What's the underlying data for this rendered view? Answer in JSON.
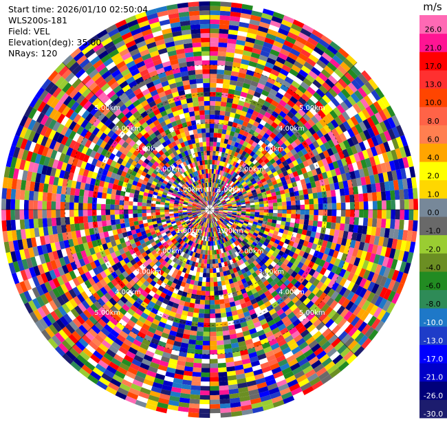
{
  "header": {
    "start_time": "Start time: 2026/01/10 02:50:04",
    "instrument": "WLS200s-181",
    "field": "Field: VEL",
    "elevation": "Elevation(deg): 35.00",
    "nrays": "NRays: 120"
  },
  "chart_data": {
    "type": "heatmap",
    "projection": "polar-ppi",
    "field": "VEL",
    "elevation_deg": 35.0,
    "n_rays": 120,
    "range_rings_km": [
      1.0,
      2.0,
      3.0,
      4.0,
      5.0
    ],
    "range_labels": [
      "1.00km",
      "2.00km",
      "3.00km",
      "4.00km",
      "5.00km"
    ],
    "max_range_km": 7.2,
    "colorbar": {
      "units": "m/s",
      "boundaries": [
        -30.0,
        -26.0,
        -21.0,
        -17.0,
        -13.0,
        -10.0,
        -8.0,
        -6.0,
        -4.0,
        -2.0,
        -1.0,
        0.0,
        1.0,
        2.0,
        4.0,
        6.0,
        8.0,
        10.0,
        13.0,
        17.0,
        21.0,
        26.0
      ],
      "tick_labels": [
        "-30.0",
        "-26.0",
        "-21.0",
        "-17.0",
        "-13.0",
        "-10.0",
        "-8.0",
        "-6.0",
        "-4.0",
        "-2.0",
        "-1.0",
        "0.0",
        "1.0",
        "2.0",
        "4.0",
        "6.0",
        "8.0",
        "10.0",
        "13.0",
        "17.0",
        "21.0",
        "26.0"
      ],
      "colors": [
        "#1c1c6e",
        "#00007a",
        "#0000c8",
        "#0000ff",
        "#1e3cc8",
        "#1e78c8",
        "#2e8b57",
        "#228b22",
        "#6b8e23",
        "#9acd32",
        "#696969",
        "#778899",
        "#ffd700",
        "#ffff00",
        "#ffa500",
        "#ff7f50",
        "#ff6347",
        "#ff4500",
        "#ff3030",
        "#ff0000",
        "#ff1493",
        "#ff69b4"
      ]
    }
  }
}
